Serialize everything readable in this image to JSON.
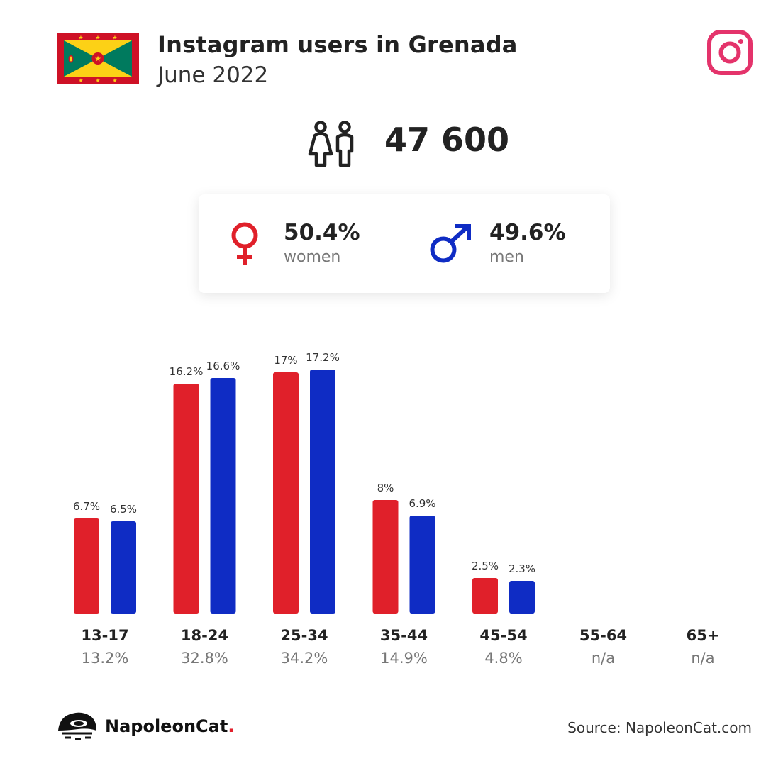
{
  "header": {
    "title": "Instagram users in Grenada",
    "subtitle": "June 2022"
  },
  "total": "47 600",
  "gender": {
    "women": {
      "pct": "50.4%",
      "label": "women"
    },
    "men": {
      "pct": "49.6%",
      "label": "men"
    }
  },
  "colors": {
    "women": "#e0202a",
    "men": "#0f2cc4",
    "instagram": "#e4336b"
  },
  "chart_data": {
    "type": "bar",
    "categories": [
      "13-17",
      "18-24",
      "25-34",
      "35-44",
      "45-54",
      "55-64",
      "65+"
    ],
    "category_totals": [
      "13.2%",
      "32.8%",
      "34.2%",
      "14.9%",
      "4.8%",
      "n/a",
      "n/a"
    ],
    "series": [
      {
        "values": [
          6.7,
          16.2,
          17.0,
          8.0,
          2.5,
          null,
          null
        ],
        "labels": [
          "6.7%",
          "16.2%",
          "17%",
          "8%",
          "2.5%",
          "",
          ""
        ]
      },
      {
        "values": [
          6.5,
          16.6,
          17.2,
          6.9,
          2.3,
          null,
          null
        ],
        "labels": [
          "6.5%",
          "16.6%",
          "17.2%",
          "6.9%",
          "2.3%",
          "",
          ""
        ]
      }
    ],
    "ylim": [
      0,
      18
    ]
  },
  "footer": {
    "brand": "NapoleonCat",
    "brand_dot": ".",
    "source": "Source: NapoleonCat.com"
  },
  "icons": {
    "flag": "grenada-flag-icon",
    "instagram": "instagram-icon",
    "users": "users-icon",
    "female": "female-symbol-icon",
    "male": "male-symbol-icon",
    "logo": "napoleoncat-logo-icon"
  }
}
